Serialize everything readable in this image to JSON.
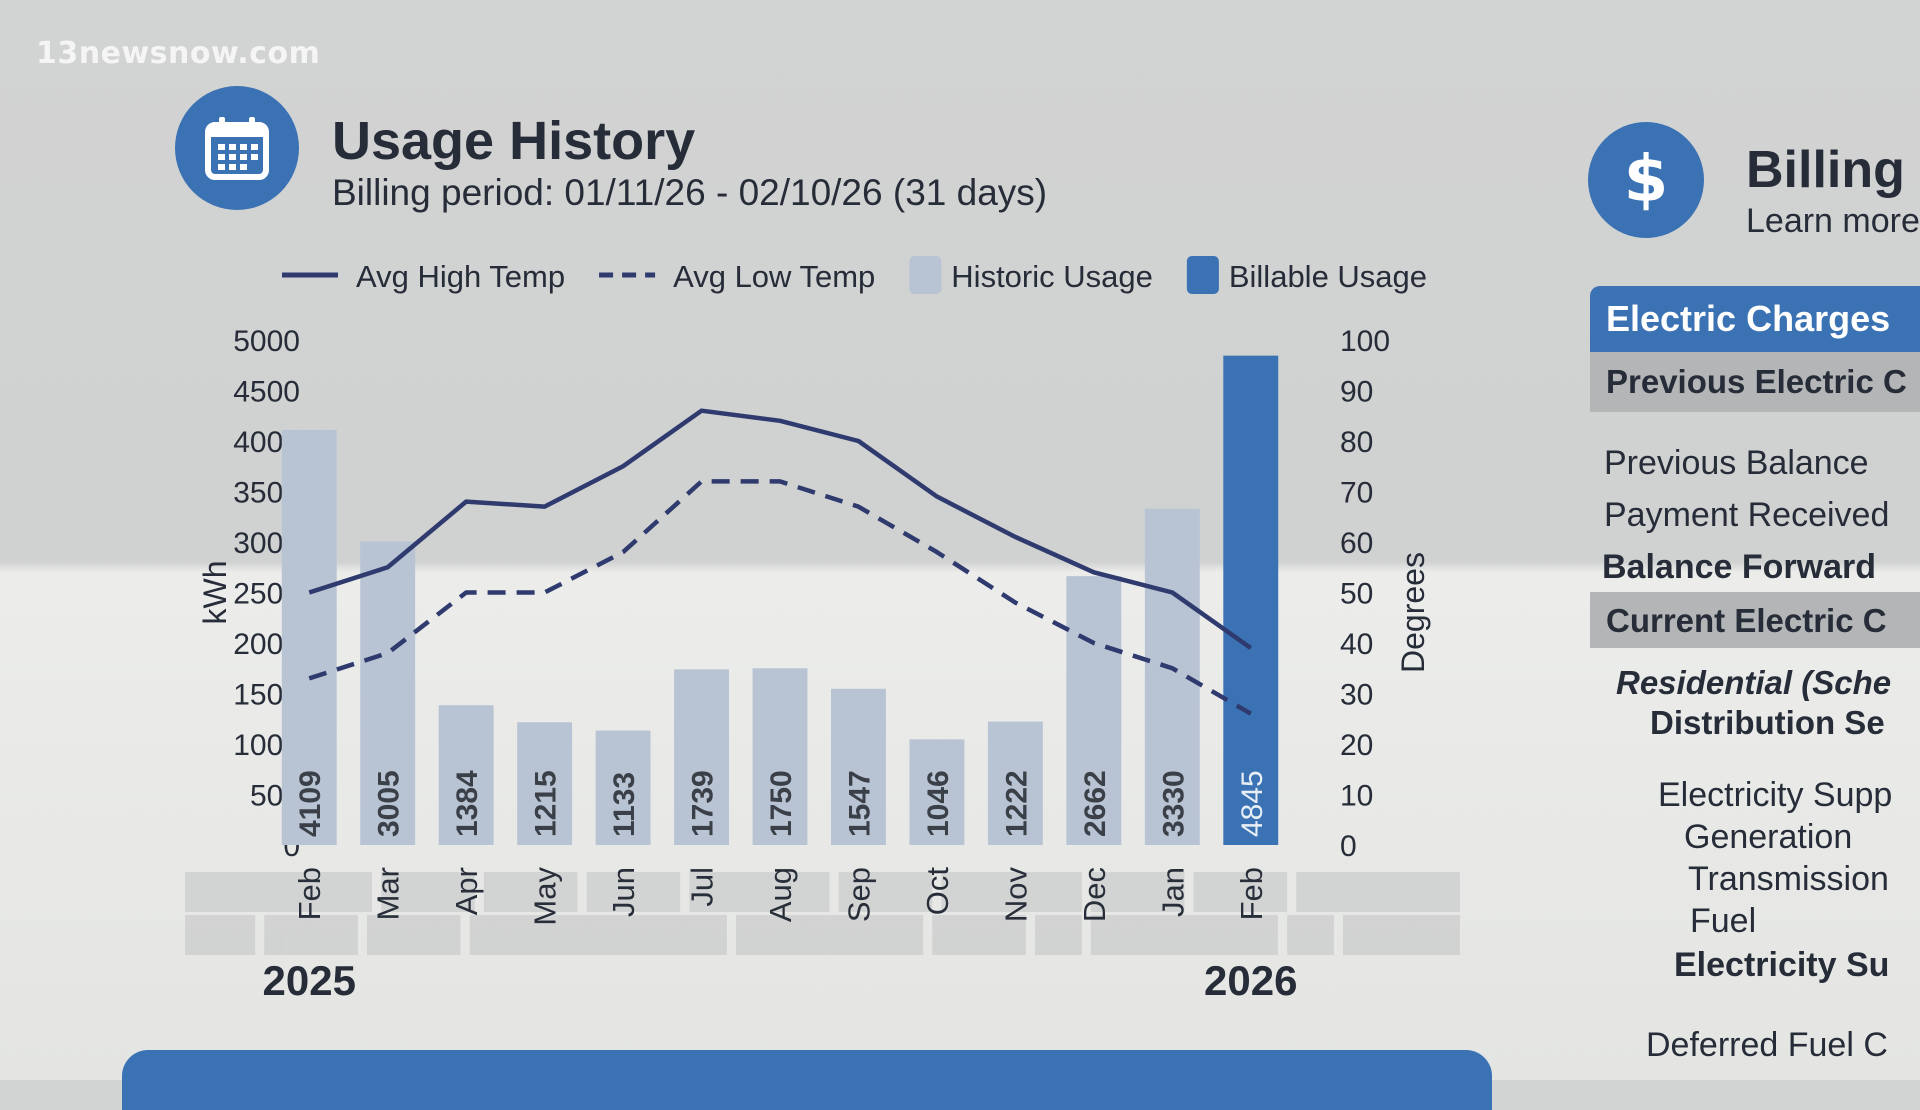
{
  "watermark": "13newsnow.com",
  "usage": {
    "title": "Usage History",
    "subtitle": "Billing period: 01/11/26 - 02/10/26 (31 days)",
    "icon": "calendar-icon",
    "accent": "#3b72b4"
  },
  "billing": {
    "title": "Billing I",
    "learn_more": "Learn more",
    "icon": "dollar-icon",
    "panel": {
      "header": "Electric Charges",
      "previous_section": "Previous Electric C",
      "rows": [
        "Previous Balance",
        "Payment Received",
        "Balance Forward"
      ],
      "current_section": "Current Electric C",
      "schedule_line1": "Residential (Sche",
      "schedule_line2": "Distribution Se",
      "supply_line": "Electricity Supp",
      "supply_items": [
        "Generation",
        "Transmission",
        "Fuel"
      ],
      "supply_total": "Electricity Su",
      "deferred": "Deferred Fuel C"
    }
  },
  "chart_data": {
    "type": "bar",
    "legend": [
      {
        "label": "Avg High Temp",
        "style": "solid-line",
        "color": "#2f3a6e"
      },
      {
        "label": "Avg Low Temp",
        "style": "dashed-line",
        "color": "#2f3a6e"
      },
      {
        "label": "Historic Usage",
        "style": "swatch",
        "color": "#b8c4d3"
      },
      {
        "label": "Billable Usage",
        "style": "swatch",
        "color": "#3b72b4"
      }
    ],
    "legend_position": "top",
    "categories": [
      "Feb",
      "Mar",
      "Apr",
      "May",
      "Jun",
      "Jul",
      "Aug",
      "Sep",
      "Oct",
      "Nov",
      "Dec",
      "Jan",
      "Feb"
    ],
    "year_labels": [
      {
        "label": "2025",
        "index": 0
      },
      {
        "label": "2026",
        "index": 12
      }
    ],
    "usage_kwh": [
      4109,
      3005,
      1384,
      1215,
      1133,
      1739,
      1750,
      1547,
      1046,
      1222,
      2662,
      3330,
      4845
    ],
    "billable_index": 12,
    "avg_high_temp": [
      50,
      55,
      68,
      67,
      75,
      86,
      84,
      80,
      69,
      61,
      54,
      50,
      39
    ],
    "avg_low_temp": [
      33,
      38,
      50,
      50,
      58,
      72,
      72,
      67,
      58,
      48,
      40,
      35,
      26
    ],
    "y_left": {
      "label": "kWh",
      "ticks": [
        0,
        500,
        1000,
        1500,
        2000,
        2500,
        3000,
        3500,
        4000,
        4500,
        5000
      ],
      "range": [
        0,
        5000
      ]
    },
    "y_right": {
      "label": "Degrees",
      "ticks": [
        0,
        10,
        20,
        30,
        40,
        50,
        60,
        70,
        80,
        90,
        100
      ],
      "range": [
        0,
        100
      ]
    },
    "grid": false,
    "colors": {
      "historic": "#b8c4d3",
      "billable": "#3b72b4",
      "temp_line": "#2f3a6e",
      "bar_label": "#3a3f48",
      "billable_label": "#e8eef6"
    }
  }
}
